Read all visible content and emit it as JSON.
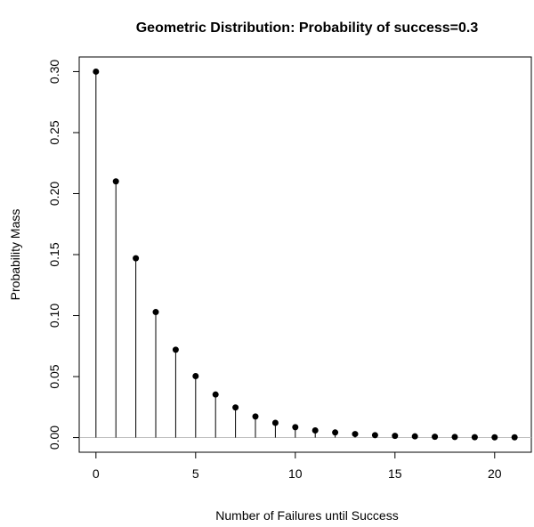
{
  "chart_data": {
    "type": "scatter",
    "style": "stem",
    "title": "Geometric Distribution:  Probability of success=0.3",
    "xlabel": "Number of Failures until Success",
    "ylabel": "Probability Mass",
    "xlim": [
      -0.84,
      21.84
    ],
    "ylim": [
      -0.012,
      0.312
    ],
    "x_ticks": [
      "0",
      "5",
      "10",
      "15",
      "20"
    ],
    "x_tick_values": [
      0,
      5,
      10,
      15,
      20
    ],
    "y_ticks": [
      "0.00",
      "0.05",
      "0.10",
      "0.15",
      "0.20",
      "0.25",
      "0.30"
    ],
    "y_tick_values": [
      0,
      0.05,
      0.1,
      0.15,
      0.2,
      0.25,
      0.3
    ],
    "x": [
      0,
      1,
      2,
      3,
      4,
      5,
      6,
      7,
      8,
      9,
      10,
      11,
      12,
      13,
      14,
      15,
      16,
      17,
      18,
      19,
      20,
      21
    ],
    "values": [
      0.3,
      0.21,
      0.147,
      0.1029,
      0.072,
      0.0504,
      0.0353,
      0.0247,
      0.0173,
      0.0121,
      0.0085,
      0.0059,
      0.0042,
      0.0029,
      0.002,
      0.0014,
      0.001,
      0.0007,
      0.0005,
      0.0003,
      0.0002,
      0.0002
    ],
    "grid": false,
    "baseline": 0,
    "colors": {
      "points": "#000000",
      "stems": "#000000",
      "baseline": "#bebebe",
      "frame": "#000000"
    }
  }
}
